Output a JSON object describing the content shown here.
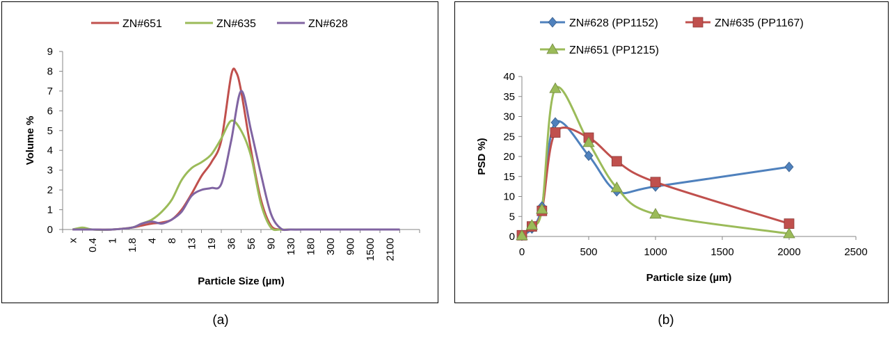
{
  "captions": {
    "a": "(a)",
    "b": "(b)"
  },
  "chart_data": [
    {
      "type": "line",
      "title": "",
      "xlabel": "Particle Size (µm)",
      "ylabel": "Volume %",
      "ylim": [
        0,
        9
      ],
      "yticks": [
        "0",
        "1",
        "2",
        "3",
        "4",
        "5",
        "6",
        "7",
        "8",
        "9"
      ],
      "categories": [
        "x",
        "0.4",
        "1",
        "1.8",
        "4",
        "8",
        "13",
        "19",
        "36",
        "56",
        "90",
        "130",
        "180",
        "300",
        "900",
        "1500",
        "2100"
      ],
      "legend_position": "top",
      "grid": false,
      "series": [
        {
          "name": "ZN#651",
          "color": "#C0504D",
          "points": [
            [
              0,
              0
            ],
            [
              1,
              0
            ],
            [
              2,
              0
            ],
            [
              3,
              0.1
            ],
            [
              3.5,
              0.2
            ],
            [
              4,
              0.3
            ],
            [
              4.5,
              0.35
            ],
            [
              5,
              0.5
            ],
            [
              5.5,
              1
            ],
            [
              6,
              1.8
            ],
            [
              6.5,
              2.7
            ],
            [
              7,
              3.4
            ],
            [
              7.5,
              4.5
            ],
            [
              8,
              7.8
            ],
            [
              8.25,
              7.95
            ],
            [
              8.5,
              7
            ],
            [
              9,
              4
            ],
            [
              9.5,
              1.5
            ],
            [
              10,
              0.2
            ],
            [
              10.5,
              0
            ],
            [
              11,
              0
            ],
            [
              12,
              0
            ],
            [
              13,
              0
            ],
            [
              14,
              0
            ],
            [
              15,
              0
            ],
            [
              16,
              0
            ],
            [
              16.5,
              0
            ]
          ]
        },
        {
          "name": "ZN#635",
          "color": "#9BBB59",
          "points": [
            [
              0,
              0
            ],
            [
              0.5,
              0.1
            ],
            [
              1,
              0
            ],
            [
              2,
              0
            ],
            [
              3,
              0.1
            ],
            [
              3.5,
              0.3
            ],
            [
              4,
              0.5
            ],
            [
              4.5,
              0.9
            ],
            [
              5,
              1.5
            ],
            [
              5.5,
              2.5
            ],
            [
              6,
              3.1
            ],
            [
              6.5,
              3.4
            ],
            [
              7,
              3.8
            ],
            [
              7.5,
              4.6
            ],
            [
              8,
              5.5
            ],
            [
              8.5,
              5
            ],
            [
              9,
              3.7
            ],
            [
              9.5,
              1.3
            ],
            [
              10,
              0.1
            ],
            [
              10.5,
              0
            ],
            [
              11,
              0
            ],
            [
              12,
              0
            ],
            [
              13,
              0
            ],
            [
              14,
              0
            ],
            [
              15,
              0
            ],
            [
              16,
              0
            ],
            [
              16.5,
              0
            ]
          ]
        },
        {
          "name": "ZN#628",
          "color": "#8064A2",
          "points": [
            [
              0,
              0
            ],
            [
              1,
              0
            ],
            [
              2,
              0
            ],
            [
              3,
              0.1
            ],
            [
              3.5,
              0.3
            ],
            [
              4,
              0.4
            ],
            [
              4.5,
              0.3
            ],
            [
              5,
              0.5
            ],
            [
              5.5,
              0.9
            ],
            [
              6,
              1.7
            ],
            [
              6.5,
              2
            ],
            [
              7,
              2.1
            ],
            [
              7.5,
              2.3
            ],
            [
              8,
              4.5
            ],
            [
              8.5,
              7
            ],
            [
              9,
              5
            ],
            [
              9.5,
              2.8
            ],
            [
              10,
              0.8
            ],
            [
              10.5,
              0.05
            ],
            [
              11,
              0
            ],
            [
              12,
              0
            ],
            [
              13,
              0
            ],
            [
              14,
              0
            ],
            [
              15,
              0
            ],
            [
              16,
              0
            ],
            [
              16.5,
              0
            ]
          ]
        }
      ]
    },
    {
      "type": "scatter",
      "title": "",
      "xlabel": "Particle size (µm)",
      "ylabel": "PSD %)",
      "xlim": [
        0,
        2500
      ],
      "ylim": [
        0,
        40
      ],
      "xticks": [
        "0",
        "500",
        "1000",
        "1500",
        "2000",
        "2500"
      ],
      "yticks": [
        "0",
        "5",
        "10",
        "15",
        "20",
        "25",
        "30",
        "35",
        "40"
      ],
      "legend_position": "top",
      "grid": false,
      "series": [
        {
          "name": "ZN#628 (PP1152)",
          "color": "#4F81BD",
          "marker": "diamond",
          "points": [
            [
              0,
              0.2
            ],
            [
              75,
              2
            ],
            [
              150,
              7.5
            ],
            [
              250,
              28.5
            ],
            [
              500,
              20.2
            ],
            [
              710,
              11.3
            ],
            [
              1000,
              12.5
            ],
            [
              2000,
              17.4
            ]
          ]
        },
        {
          "name": "ZN#635 (PP1167)",
          "color": "#C0504D",
          "marker": "square",
          "points": [
            [
              0,
              0.3
            ],
            [
              75,
              2.5
            ],
            [
              150,
              6.4
            ],
            [
              250,
              26
            ],
            [
              500,
              24.7
            ],
            [
              710,
              18.8
            ],
            [
              1000,
              13.6
            ],
            [
              2000,
              3.2
            ]
          ]
        },
        {
          "name": "ZN#651 (PP1215)",
          "color": "#9BBB59",
          "marker": "triangle",
          "points": [
            [
              0,
              0.2
            ],
            [
              75,
              2.8
            ],
            [
              150,
              6.8
            ],
            [
              250,
              37
            ],
            [
              500,
              23.5
            ],
            [
              710,
              12.2
            ],
            [
              1000,
              5.6
            ],
            [
              2000,
              0.7
            ]
          ]
        }
      ]
    }
  ]
}
